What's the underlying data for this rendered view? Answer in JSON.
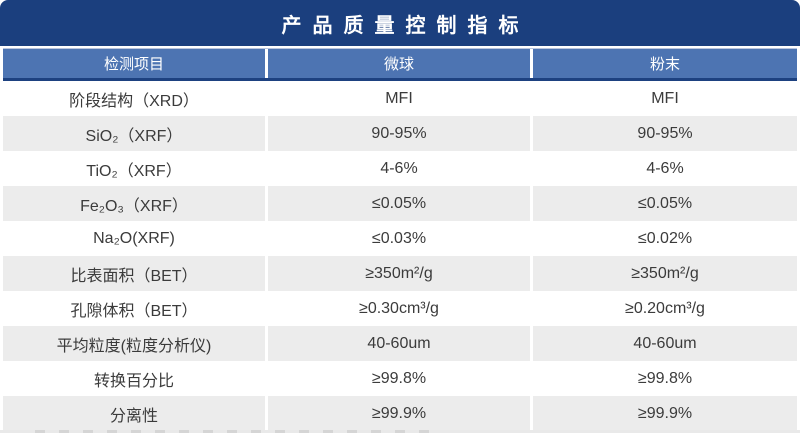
{
  "chart_data": {
    "type": "table",
    "title": "产品质量控制指标",
    "columns": [
      "检测项目",
      "微球",
      "粉末"
    ],
    "rows": [
      [
        "阶段结构（XRD）",
        "MFI",
        "MFI"
      ],
      [
        "SiO₂（XRF）",
        "90-95%",
        "90-95%"
      ],
      [
        "TiO₂（XRF）",
        "4-6%",
        "4-6%"
      ],
      [
        "Fe₂O₃（XRF）",
        "≤0.05%",
        "≤0.05%"
      ],
      [
        "Na₂O(XRF)",
        "≤0.03%",
        "≤0.02%"
      ],
      [
        "比表面积（BET）",
        "≥350m²/g",
        "≥350m²/g"
      ],
      [
        "孔隙体积（BET）",
        "≥0.30cm³/g",
        "≥0.20cm³/g"
      ],
      [
        "平均粒度(粒度分析仪)",
        "40-60um",
        "40-60um"
      ],
      [
        "转换百分比",
        "≥99.8%",
        "≥99.8%"
      ],
      [
        "分离性",
        "≥99.9%",
        "≥99.9%"
      ]
    ],
    "layout": {
      "header_position": "top",
      "striped_rows": true,
      "first_row_background": "white"
    }
  },
  "colors": {
    "title_bar": "#1b3f7e",
    "header_row": "#4d74b2",
    "header_border": "#1d4180",
    "row_alt": "#ececec",
    "body_text": "#3b3b3b"
  }
}
